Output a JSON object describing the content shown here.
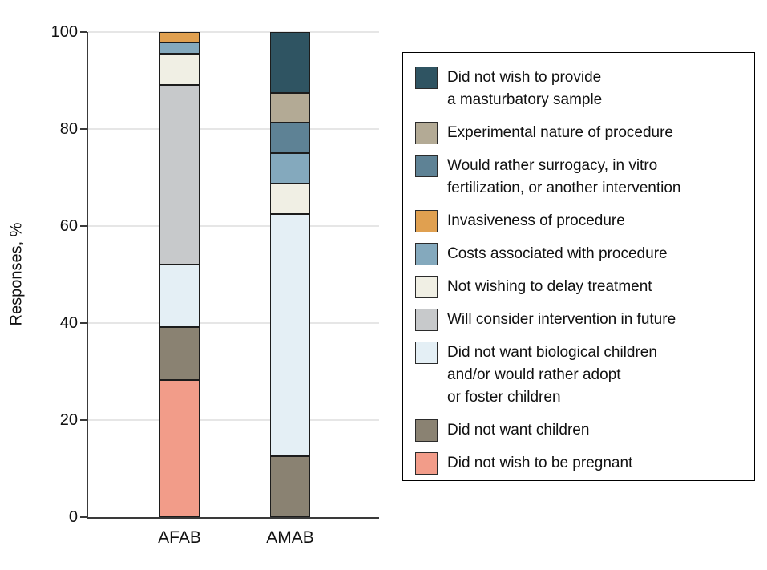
{
  "chart_data": {
    "type": "bar",
    "stacked": true,
    "title": "",
    "xlabel": "",
    "ylabel": "Responses, %",
    "categories": [
      "AFAB",
      "AMAB"
    ],
    "ylim": [
      0,
      100
    ],
    "y_ticks": [
      0,
      20,
      40,
      60,
      80,
      100
    ],
    "grid": true,
    "legend_position": "right",
    "series": [
      {
        "name": "Did not wish to provide\na masturbatory sample",
        "color": "#2F5462",
        "values": [
          0,
          12.5
        ]
      },
      {
        "name": "Experimental nature of procedure",
        "color": "#B3AA95",
        "values": [
          0,
          6.25
        ]
      },
      {
        "name": "Would rather surrogacy, in vitro\nfertilization, or another intervention",
        "color": "#5E8295",
        "values": [
          0,
          6.25
        ]
      },
      {
        "name": "Invasiveness of procedure",
        "color": "#E0A050",
        "values": [
          2.2,
          0
        ]
      },
      {
        "name": "Costs associated with procedure",
        "color": "#84A9BD",
        "values": [
          2.2,
          6.25
        ]
      },
      {
        "name": "Not wishing to delay treatment",
        "color": "#F0EFE4",
        "values": [
          6.5,
          6.25
        ]
      },
      {
        "name": "Will consider intervention in future",
        "color": "#C7C9CB",
        "values": [
          37.0,
          0
        ]
      },
      {
        "name": "Did not want biological children\nand/or would rather adopt\nor foster children",
        "color": "#E4EFF5",
        "values": [
          13.0,
          50.0
        ]
      },
      {
        "name": "Did not want children",
        "color": "#8A8272",
        "values": [
          10.9,
          12.5
        ]
      },
      {
        "name": "Did not wish to be pregnant",
        "color": "#F29C89",
        "values": [
          28.2,
          0
        ]
      }
    ]
  },
  "style_hints": {
    "axis_color": "#3a3a3a",
    "gridline_color": "#e6e6e6",
    "segment_border_color": "#1c1c1c",
    "legend_border_color": "#000000"
  }
}
